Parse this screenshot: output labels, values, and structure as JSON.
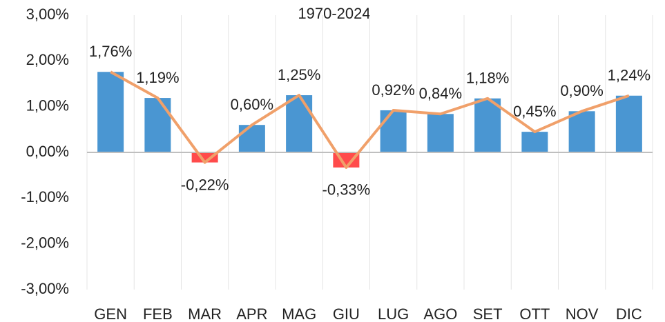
{
  "chart_data": {
    "type": "bar",
    "title": "1970-2024",
    "categories": [
      "GEN",
      "FEB",
      "MAR",
      "APR",
      "MAG",
      "GIU",
      "LUG",
      "AGO",
      "SET",
      "OTT",
      "NOV",
      "DIC"
    ],
    "values": [
      1.76,
      1.19,
      -0.22,
      0.6,
      1.25,
      -0.33,
      0.92,
      0.84,
      1.18,
      0.45,
      0.9,
      1.24
    ],
    "value_labels": [
      "1,76%",
      "1,19%",
      "-0,22%",
      "0,60%",
      "1,25%",
      "-0,33%",
      "0,92%",
      "0,84%",
      "1,18%",
      "0,45%",
      "0,90%",
      "1,24%"
    ],
    "color": "#4a96d2",
    "negative_color": "#ff4b4b",
    "line_color": "#f0a06a",
    "ylim": [
      -3,
      3
    ],
    "yticks": [
      {
        "value": -3,
        "label": "-3,00%"
      },
      {
        "value": -2,
        "label": "-2,00%"
      },
      {
        "value": -1,
        "label": "-1,00%"
      },
      {
        "value": 0,
        "label": "0,00%"
      },
      {
        "value": 1,
        "label": "1,00%"
      },
      {
        "value": 2,
        "label": "2,00%"
      },
      {
        "value": 3,
        "label": "3,00%"
      }
    ],
    "grid": true
  }
}
